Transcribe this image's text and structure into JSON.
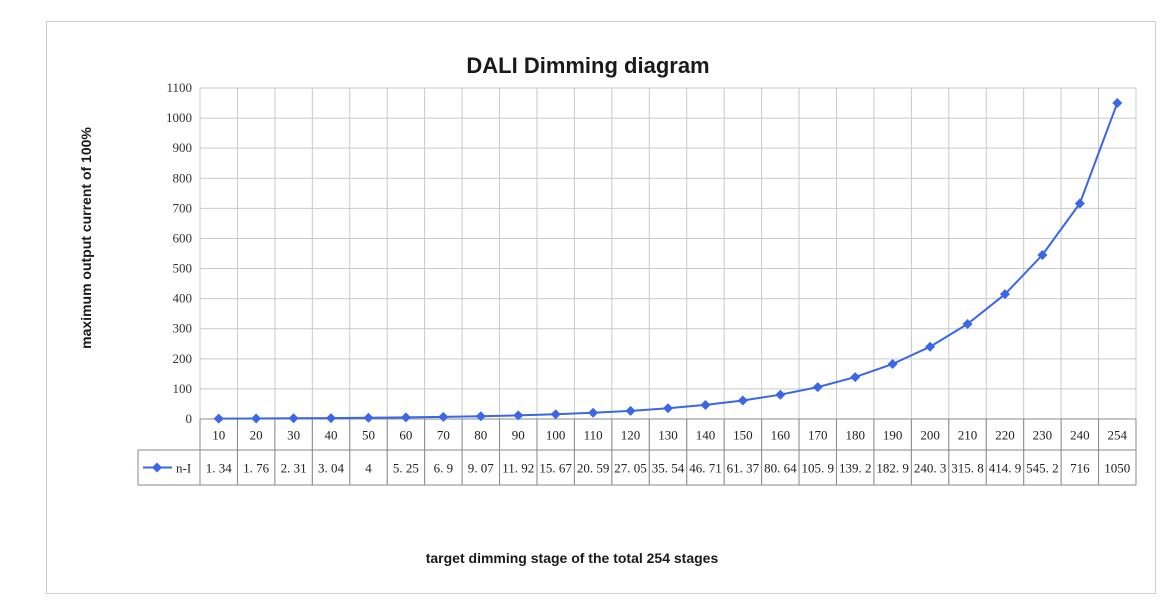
{
  "chart_data": {
    "type": "line",
    "title": "DALI Dimming diagram",
    "xlabel": "target dimming stage of the total 254 stages",
    "ylabel": "maximum output current of 100%",
    "ylim": [
      0,
      1100
    ],
    "ytick_step": 100,
    "categories": [
      "10",
      "20",
      "30",
      "40",
      "50",
      "60",
      "70",
      "80",
      "90",
      "100",
      "110",
      "120",
      "130",
      "140",
      "150",
      "160",
      "170",
      "180",
      "190",
      "200",
      "210",
      "220",
      "230",
      "240",
      "254"
    ],
    "series": [
      {
        "name": "n-I",
        "color": "#3a66e8",
        "values": [
          1.34,
          1.76,
          2.31,
          3.04,
          4,
          5.25,
          6.9,
          9.07,
          11.92,
          15.67,
          20.59,
          27.05,
          35.54,
          46.71,
          61.37,
          80.64,
          105.9,
          139.2,
          182.9,
          240.3,
          315.8,
          414.9,
          545.2,
          716,
          1050
        ],
        "labels": [
          "1. 34",
          "1. 76",
          "2. 31",
          "3. 04",
          "4",
          "5. 25",
          "6. 9",
          "9. 07",
          "11. 92",
          "15. 67",
          "20. 59",
          "27. 05",
          "35. 54",
          "46. 71",
          "61. 37",
          "80. 64",
          "105. 9",
          "139. 2",
          "182. 9",
          "240. 3",
          "315. 8",
          "414. 9",
          "545. 2",
          "716",
          "1050"
        ]
      }
    ],
    "grid": true,
    "legend": "data-table"
  }
}
